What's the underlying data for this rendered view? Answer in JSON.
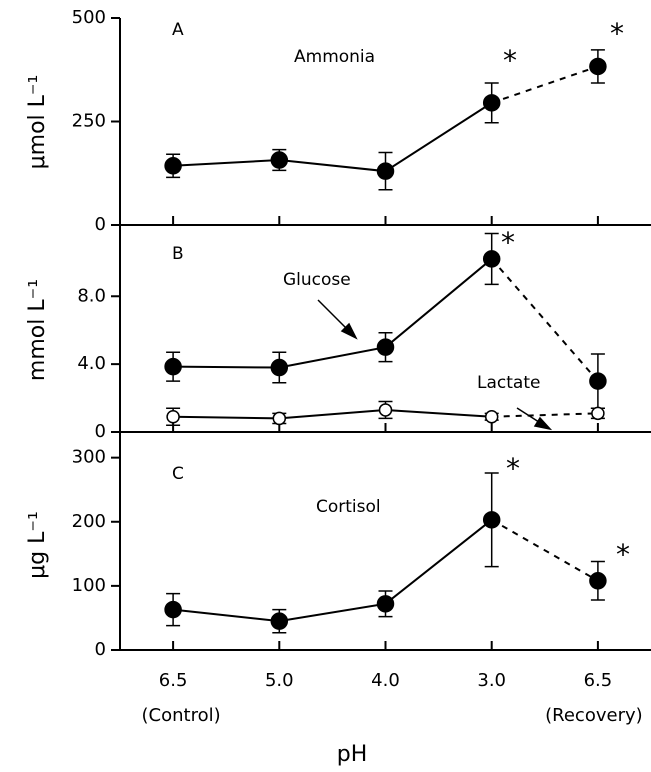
{
  "chart_data": [
    {
      "type": "line",
      "panel": "A",
      "label": "Ammonia",
      "y_label": "μmol L⁻¹",
      "ylim": [
        0,
        500
      ],
      "yticks": [
        0,
        250,
        500
      ],
      "series": [
        {
          "name": "Ammonia",
          "color": "#000000",
          "marker": "filled",
          "values": [
            143,
            157,
            130,
            295,
            383
          ],
          "errors": [
            28,
            25,
            45,
            48,
            40
          ]
        }
      ],
      "annotations": [
        "*",
        "*"
      ]
    },
    {
      "type": "line",
      "panel": "B",
      "y_label": "mmol L⁻¹",
      "ylim": [
        0,
        12.2
      ],
      "yticks": [
        0,
        {
          "value": 4,
          "label": "4.0"
        },
        {
          "value": 8,
          "label": "8.0"
        }
      ],
      "series": [
        {
          "name": "Glucose",
          "color": "#000000",
          "marker": "filled",
          "values": [
            3.85,
            3.8,
            5.0,
            10.2,
            3.0
          ],
          "errors": [
            0.85,
            0.9,
            0.85,
            1.5,
            1.6
          ]
        },
        {
          "name": "Lactate",
          "color": "#000000",
          "marker": "open",
          "values": [
            0.9,
            0.8,
            1.3,
            0.9,
            1.1
          ],
          "errors": [
            0.5,
            0.3,
            0.5,
            0.2,
            0.3
          ]
        }
      ],
      "annotations": [
        "*"
      ]
    },
    {
      "type": "line",
      "panel": "C",
      "label": "Cortisol",
      "y_label": "μg L⁻¹",
      "ylim": [
        0,
        340
      ],
      "yticks": [
        0,
        100,
        200,
        300
      ],
      "x_label": "pH",
      "categories": [
        "6.5",
        "5.0",
        "4.0",
        "3.0",
        "6.5"
      ],
      "category_notes": [
        "(Control)",
        null,
        null,
        null,
        "(Recovery)"
      ],
      "series": [
        {
          "name": "Cortisol",
          "color": "#000000",
          "marker": "filled",
          "values": [
            63,
            45,
            72,
            203,
            108
          ],
          "errors": [
            25,
            18,
            20,
            73,
            30
          ]
        }
      ],
      "annotations": [
        "*",
        "*"
      ]
    }
  ]
}
